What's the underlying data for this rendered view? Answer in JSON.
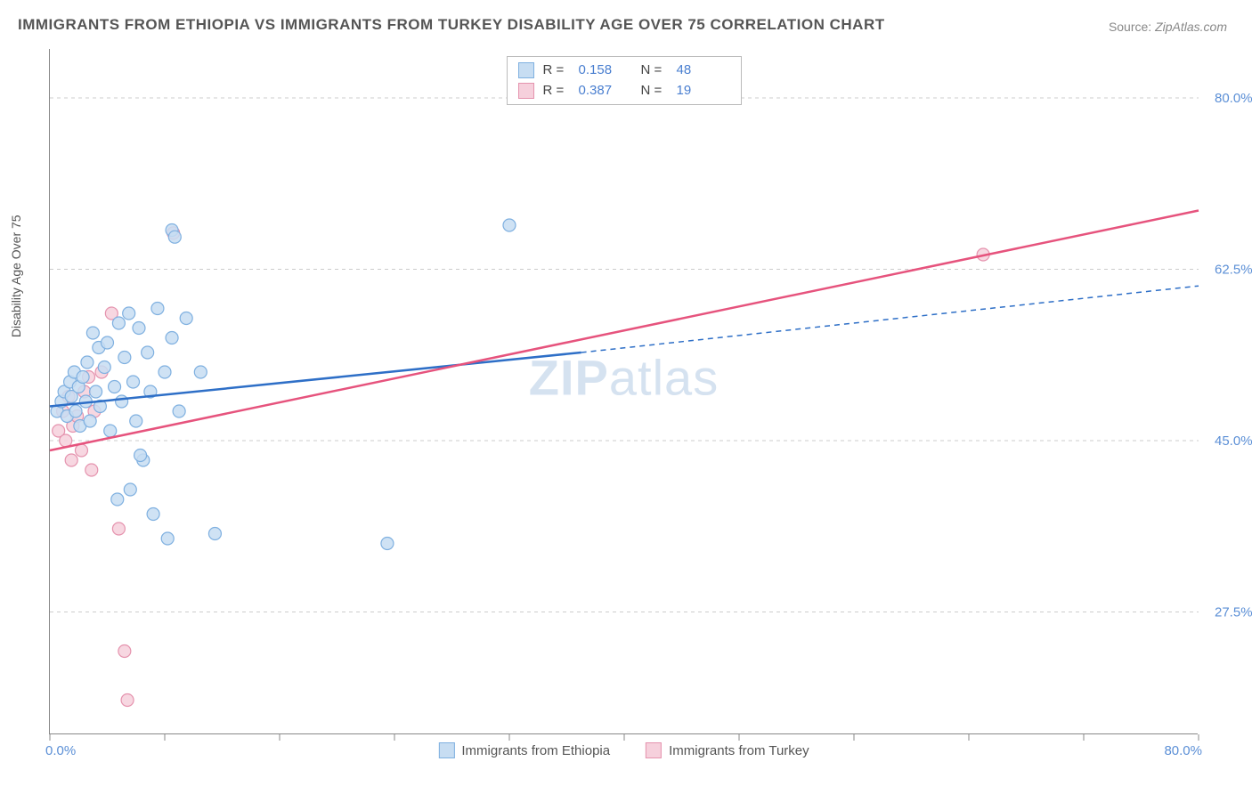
{
  "title": "IMMIGRANTS FROM ETHIOPIA VS IMMIGRANTS FROM TURKEY DISABILITY AGE OVER 75 CORRELATION CHART",
  "source_label": "Source:",
  "source_value": "ZipAtlas.com",
  "y_axis_title": "Disability Age Over 75",
  "watermark_bold": "ZIP",
  "watermark_rest": "atlas",
  "chart": {
    "type": "scatter",
    "xlim": [
      0,
      80
    ],
    "ylim": [
      15,
      85
    ],
    "x_min_label": "0.0%",
    "x_max_label": "80.0%",
    "y_ticks": [
      {
        "v": 27.5,
        "label": "27.5%"
      },
      {
        "v": 45.0,
        "label": "45.0%"
      },
      {
        "v": 62.5,
        "label": "62.5%"
      },
      {
        "v": 80.0,
        "label": "80.0%"
      }
    ],
    "x_tick_positions": [
      0,
      8,
      16,
      24,
      32,
      40,
      48,
      56,
      64,
      72,
      80
    ],
    "grid_color": "#cccccc",
    "background_color": "#ffffff",
    "marker_radius": 7,
    "marker_stroke_width": 1.2,
    "line_width": 2.5,
    "series": [
      {
        "name": "Immigrants from Ethiopia",
        "fill": "#c7ddf2",
        "stroke": "#7fb0e0",
        "line_color": "#2e6fc7",
        "r_label": "R  =",
        "r_value": "0.158",
        "n_label": "N  =",
        "n_value": "48",
        "regression": {
          "x1": 0,
          "y1": 48.5,
          "x2": 37,
          "y2": 54.0,
          "x2_ext": 80,
          "y2_ext": 60.8,
          "dash_from": 37
        },
        "points": [
          [
            0.5,
            48
          ],
          [
            0.8,
            49
          ],
          [
            1.0,
            50
          ],
          [
            1.2,
            47.5
          ],
          [
            1.4,
            51
          ],
          [
            1.5,
            49.5
          ],
          [
            1.7,
            52
          ],
          [
            1.8,
            48
          ],
          [
            2.0,
            50.5
          ],
          [
            2.1,
            46.5
          ],
          [
            2.3,
            51.5
          ],
          [
            2.5,
            49
          ],
          [
            2.6,
            53
          ],
          [
            2.8,
            47
          ],
          [
            3.0,
            56
          ],
          [
            3.2,
            50
          ],
          [
            3.4,
            54.5
          ],
          [
            3.5,
            48.5
          ],
          [
            3.8,
            52.5
          ],
          [
            4.0,
            55
          ],
          [
            4.2,
            46
          ],
          [
            4.5,
            50.5
          ],
          [
            4.8,
            57
          ],
          [
            5.0,
            49
          ],
          [
            5.2,
            53.5
          ],
          [
            5.5,
            58
          ],
          [
            5.8,
            51
          ],
          [
            6.0,
            47
          ],
          [
            6.2,
            56.5
          ],
          [
            6.5,
            43
          ],
          [
            6.8,
            54
          ],
          [
            7.0,
            50
          ],
          [
            7.5,
            58.5
          ],
          [
            8.0,
            52
          ],
          [
            8.5,
            55.5
          ],
          [
            9.0,
            48
          ],
          [
            5.6,
            40
          ],
          [
            7.2,
            37.5
          ],
          [
            8.2,
            35
          ],
          [
            11.5,
            35.5
          ],
          [
            9.5,
            57.5
          ],
          [
            10.5,
            52
          ],
          [
            8.5,
            66.5
          ],
          [
            8.7,
            65.8
          ],
          [
            4.7,
            39
          ],
          [
            23.5,
            34.5
          ],
          [
            32,
            67
          ],
          [
            6.3,
            43.5
          ]
        ]
      },
      {
        "name": "Immigrants from Turkey",
        "fill": "#f6d0dc",
        "stroke": "#e593ae",
        "line_color": "#e6537d",
        "r_label": "R  =",
        "r_value": "0.387",
        "n_label": "N  =",
        "n_value": "19",
        "regression": {
          "x1": 0,
          "y1": 44.0,
          "x2": 80,
          "y2": 68.5,
          "dash_from": null
        },
        "points": [
          [
            0.6,
            46
          ],
          [
            0.9,
            48
          ],
          [
            1.1,
            45
          ],
          [
            1.3,
            49.5
          ],
          [
            1.6,
            46.5
          ],
          [
            1.9,
            47.5
          ],
          [
            2.2,
            44
          ],
          [
            2.4,
            50
          ],
          [
            2.7,
            51.5
          ],
          [
            3.1,
            48
          ],
          [
            3.6,
            52
          ],
          [
            4.3,
            58
          ],
          [
            2.9,
            42
          ],
          [
            1.5,
            43
          ],
          [
            4.8,
            36
          ],
          [
            5.2,
            23.5
          ],
          [
            5.4,
            18.5
          ],
          [
            8.6,
            66.2
          ],
          [
            65,
            64
          ]
        ]
      }
    ]
  },
  "legend_bottom": [
    {
      "label": "Immigrants from Ethiopia",
      "fill": "#c7ddf2",
      "stroke": "#7fb0e0"
    },
    {
      "label": "Immigrants from Turkey",
      "fill": "#f6d0dc",
      "stroke": "#e593ae"
    }
  ]
}
